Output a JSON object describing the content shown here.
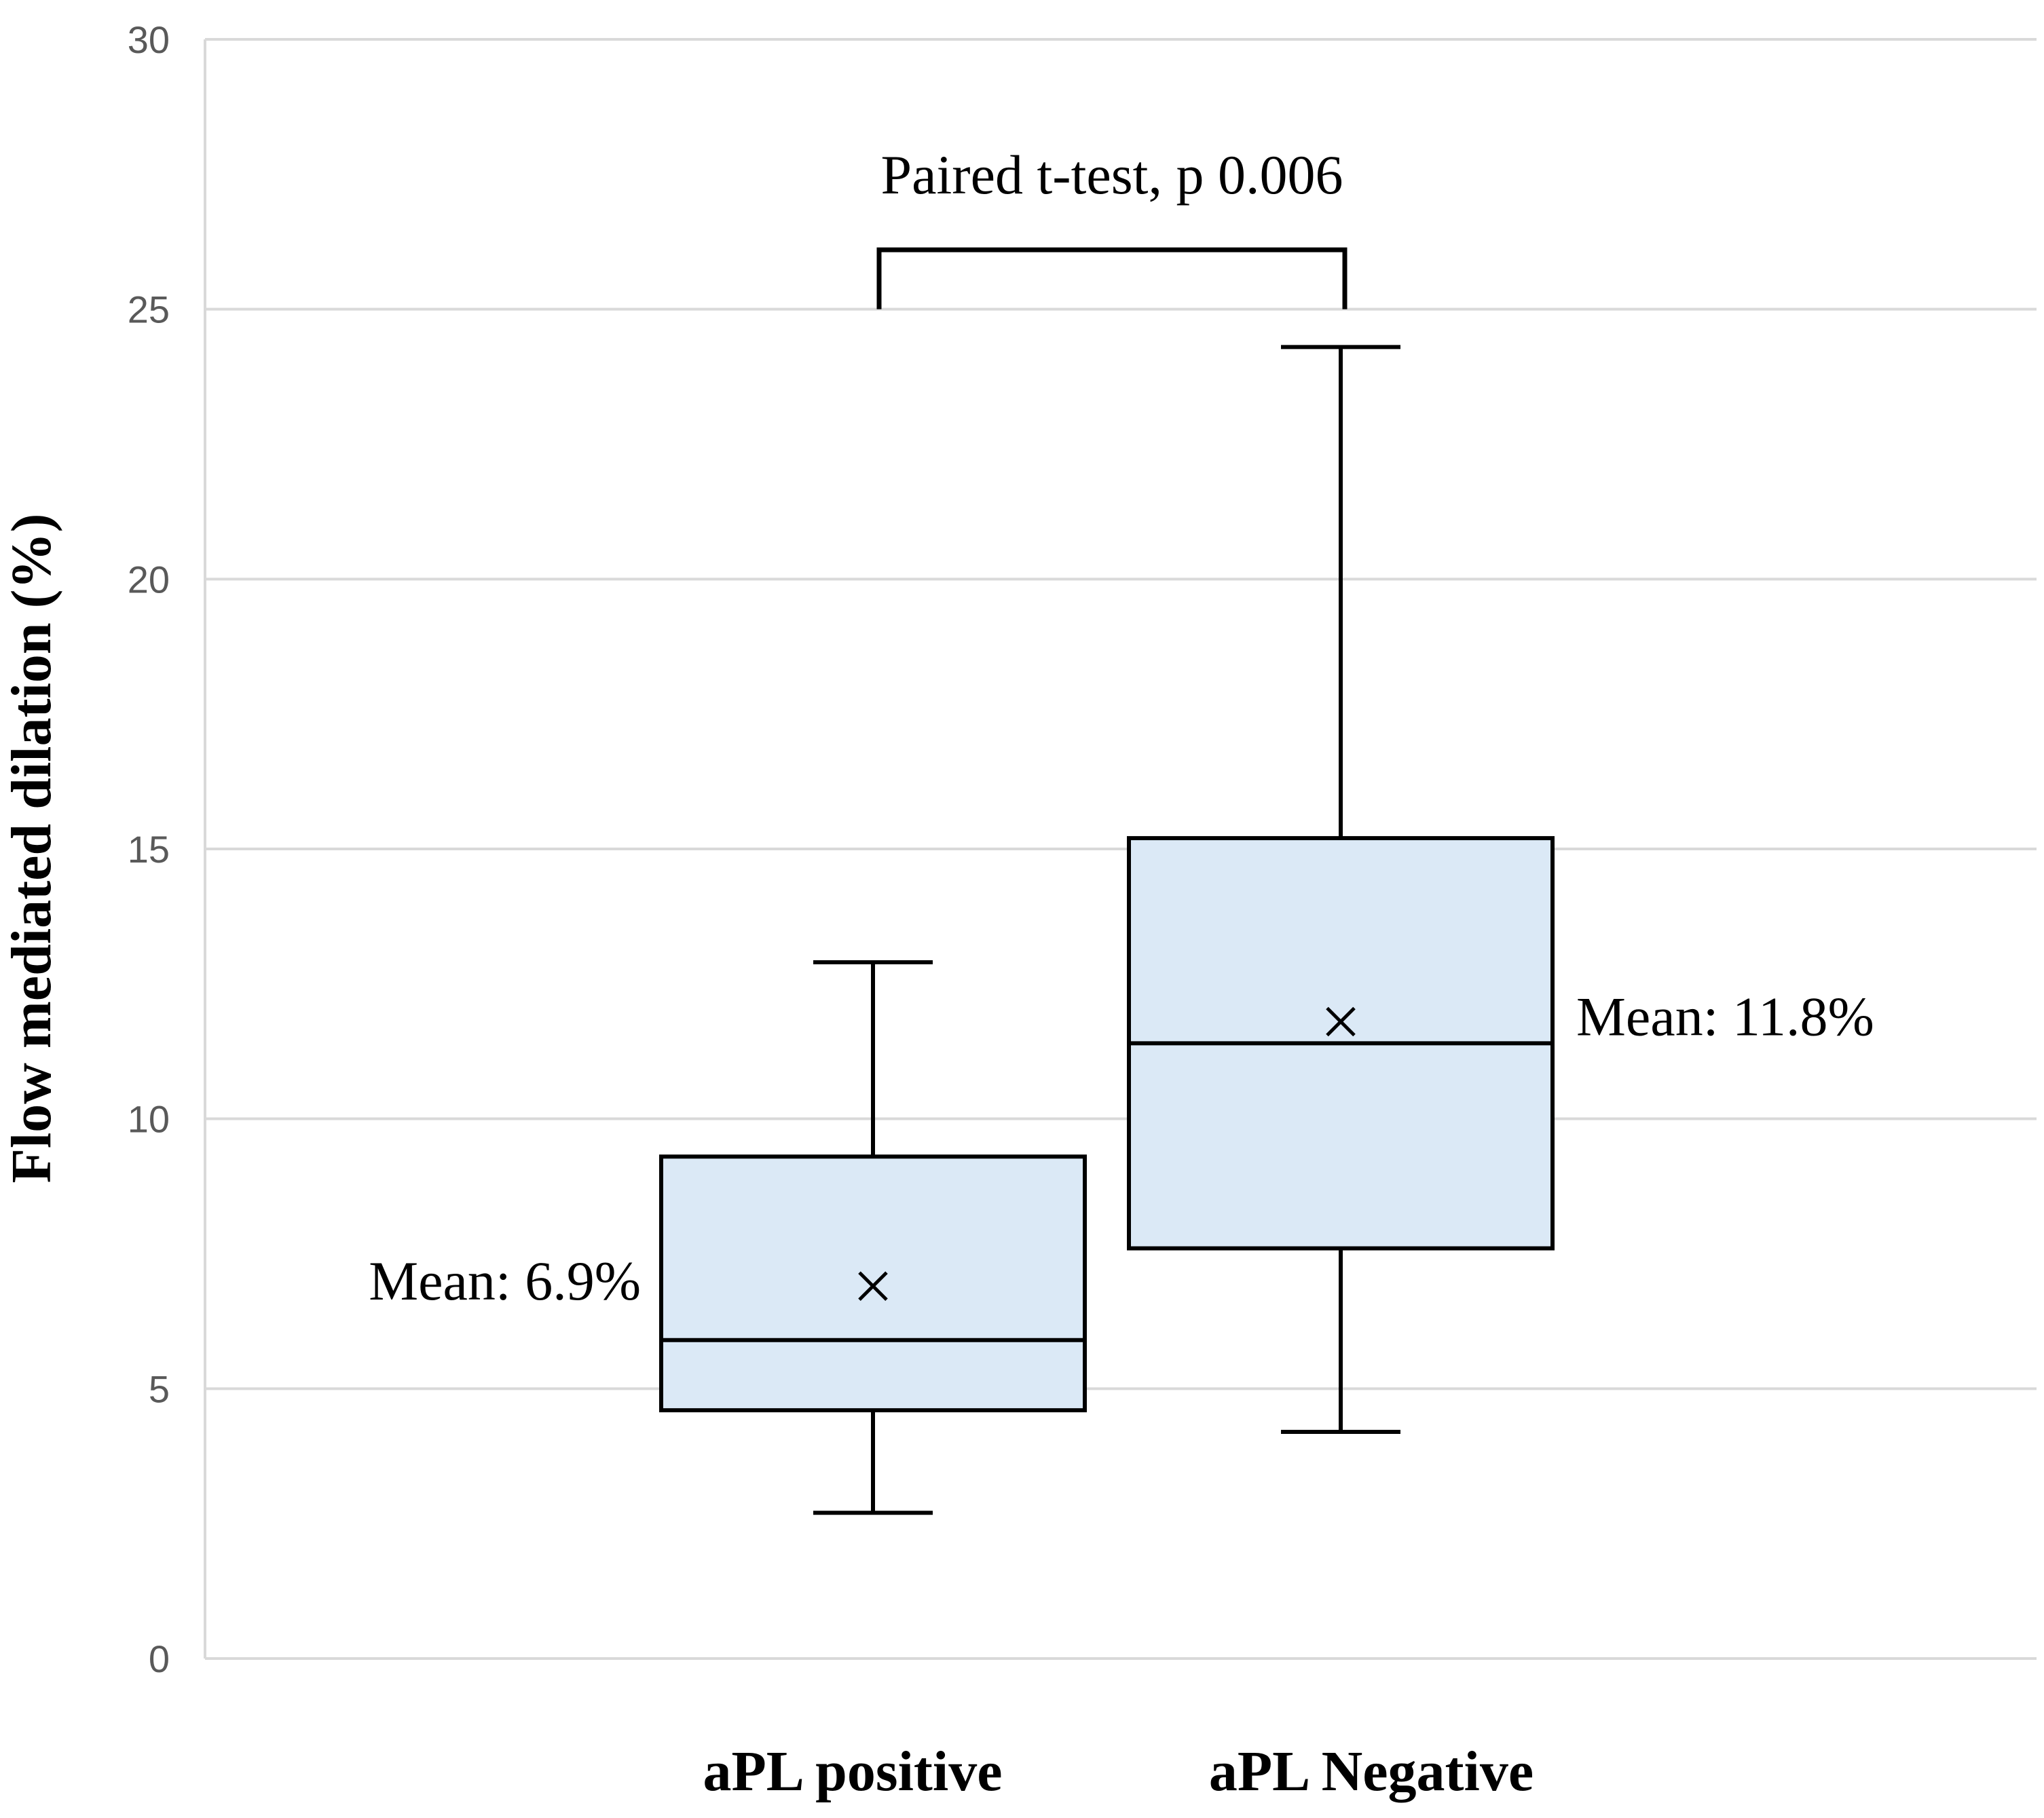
{
  "chart_data": {
    "type": "box",
    "title": "",
    "xlabel": "",
    "ylabel": "Flow mediated dilation (%)",
    "ylim": [
      0,
      30
    ],
    "yticks": [
      0,
      5,
      10,
      15,
      20,
      25,
      30
    ],
    "grid": true,
    "categories": [
      "aPL positive",
      "aPL Negative"
    ],
    "boxes": [
      {
        "name": "aPL positive",
        "whisker_low": 2.7,
        "q1": 4.6,
        "median": 5.9,
        "q3": 9.3,
        "whisker_high": 12.9,
        "mean": 6.9,
        "mean_label": "Mean: 6.9%"
      },
      {
        "name": "aPL Negative",
        "whisker_low": 4.2,
        "q1": 7.6,
        "median": 11.4,
        "q3": 15.2,
        "whisker_high": 24.3,
        "mean": 11.8,
        "mean_label": "Mean: 11.8%"
      }
    ],
    "annotation": {
      "text": "Paired t-test, p 0.006",
      "between": [
        "aPL positive",
        "aPL Negative"
      ]
    },
    "colors": {
      "box_fill": "#dbe9f6",
      "stroke": "#000000",
      "grid": "#d9d9d9",
      "tick_text": "#595959"
    }
  }
}
